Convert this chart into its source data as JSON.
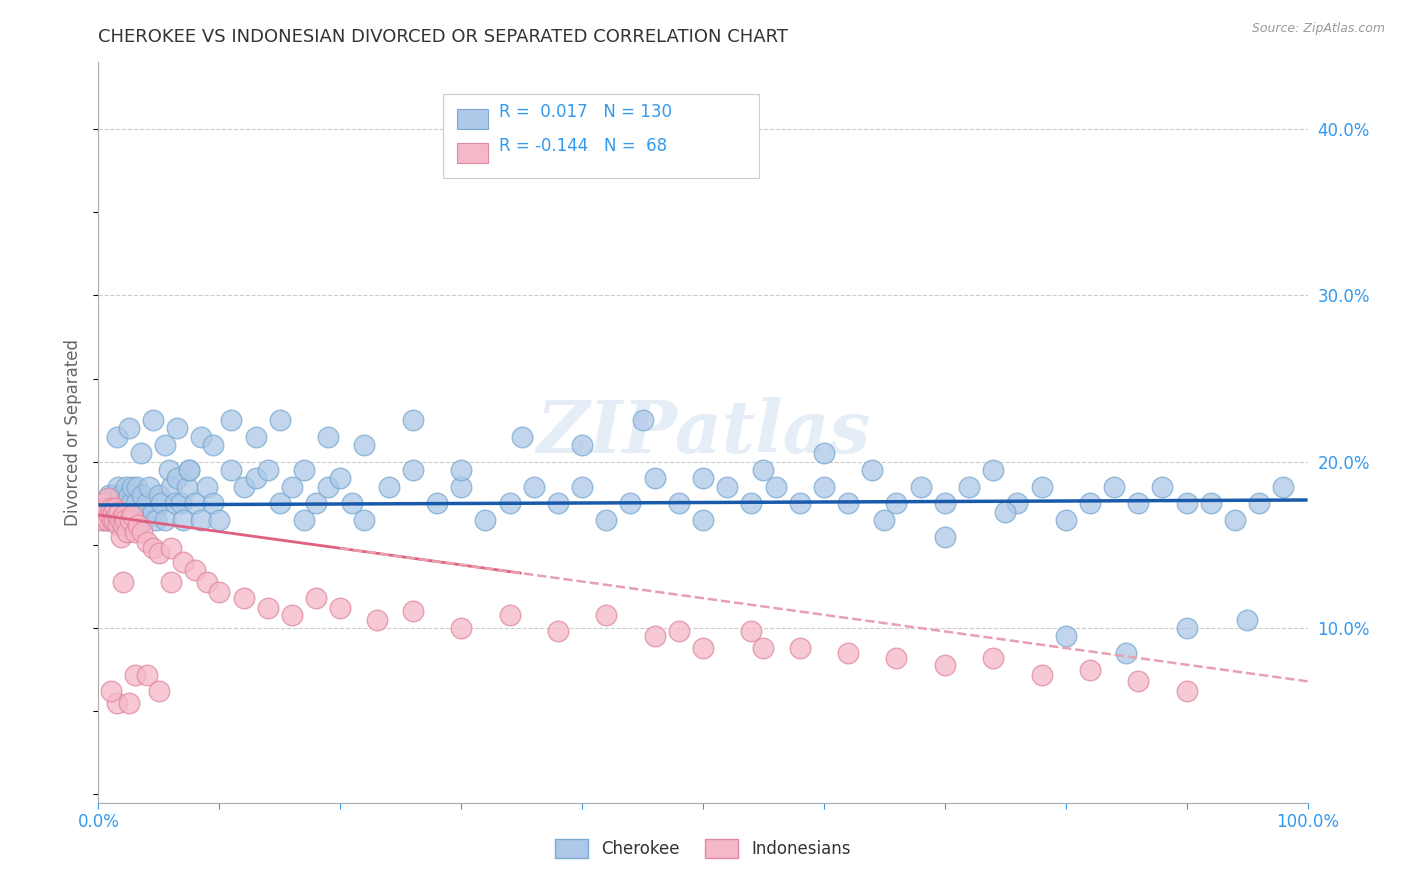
{
  "title": "CHEROKEE VS INDONESIAN DIVORCED OR SEPARATED CORRELATION CHART",
  "source": "Source: ZipAtlas.com",
  "ylabel": "Divorced or Separated",
  "ytick_values": [
    0.1,
    0.2,
    0.3,
    0.4
  ],
  "xlim": [
    0.0,
    1.0
  ],
  "ylim": [
    -0.005,
    0.44
  ],
  "cherokee_color": "#adc8e8",
  "cherokee_edge": "#7aaad0",
  "indonesian_color": "#f5b8c8",
  "indonesian_edge": "#e088a0",
  "cherokee_R": 0.017,
  "cherokee_N": 130,
  "indonesian_R": -0.144,
  "indonesian_N": 68,
  "cherokee_line_color": "#1a5aaa",
  "indonesian_line_color": "#e06080",
  "indonesian_dash_color": "#e8a0b0",
  "watermark": "ZIPatlas",
  "background_color": "#ffffff",
  "grid_color": "#cccccc",
  "title_color": "#333333",
  "axis_label_color": "#666666",
  "tick_color_blue": "#3399ee",
  "legend_text_color": "#3399ee",
  "cherokee_x": [
    0.003,
    0.005,
    0.007,
    0.008,
    0.009,
    0.01,
    0.011,
    0.012,
    0.013,
    0.014,
    0.015,
    0.016,
    0.017,
    0.018,
    0.019,
    0.02,
    0.021,
    0.022,
    0.023,
    0.024,
    0.025,
    0.026,
    0.027,
    0.028,
    0.03,
    0.031,
    0.032,
    0.034,
    0.036,
    0.038,
    0.04,
    0.042,
    0.045,
    0.048,
    0.05,
    0.052,
    0.055,
    0.058,
    0.06,
    0.063,
    0.065,
    0.068,
    0.07,
    0.073,
    0.075,
    0.08,
    0.085,
    0.09,
    0.095,
    0.1,
    0.11,
    0.12,
    0.13,
    0.14,
    0.15,
    0.16,
    0.17,
    0.18,
    0.19,
    0.2,
    0.21,
    0.22,
    0.24,
    0.26,
    0.28,
    0.3,
    0.32,
    0.34,
    0.36,
    0.38,
    0.4,
    0.42,
    0.44,
    0.46,
    0.48,
    0.5,
    0.52,
    0.54,
    0.56,
    0.58,
    0.6,
    0.62,
    0.64,
    0.66,
    0.68,
    0.7,
    0.72,
    0.74,
    0.76,
    0.78,
    0.8,
    0.82,
    0.84,
    0.86,
    0.88,
    0.9,
    0.92,
    0.94,
    0.96,
    0.98,
    0.015,
    0.025,
    0.035,
    0.045,
    0.055,
    0.065,
    0.075,
    0.085,
    0.095,
    0.11,
    0.13,
    0.15,
    0.17,
    0.19,
    0.22,
    0.26,
    0.3,
    0.35,
    0.4,
    0.45,
    0.5,
    0.55,
    0.6,
    0.65,
    0.7,
    0.75,
    0.8,
    0.85,
    0.9,
    0.95
  ],
  "cherokee_y": [
    0.17,
    0.165,
    0.175,
    0.165,
    0.18,
    0.175,
    0.165,
    0.17,
    0.18,
    0.165,
    0.175,
    0.185,
    0.17,
    0.165,
    0.18,
    0.175,
    0.165,
    0.175,
    0.185,
    0.17,
    0.18,
    0.165,
    0.175,
    0.185,
    0.165,
    0.175,
    0.185,
    0.17,
    0.18,
    0.165,
    0.175,
    0.185,
    0.17,
    0.165,
    0.18,
    0.175,
    0.165,
    0.195,
    0.185,
    0.175,
    0.19,
    0.175,
    0.165,
    0.185,
    0.195,
    0.175,
    0.165,
    0.185,
    0.175,
    0.165,
    0.195,
    0.185,
    0.19,
    0.195,
    0.175,
    0.185,
    0.165,
    0.175,
    0.185,
    0.19,
    0.175,
    0.165,
    0.185,
    0.195,
    0.175,
    0.185,
    0.165,
    0.175,
    0.185,
    0.175,
    0.185,
    0.165,
    0.175,
    0.19,
    0.175,
    0.165,
    0.185,
    0.175,
    0.185,
    0.175,
    0.185,
    0.175,
    0.195,
    0.175,
    0.185,
    0.175,
    0.185,
    0.195,
    0.175,
    0.185,
    0.165,
    0.175,
    0.185,
    0.175,
    0.185,
    0.175,
    0.175,
    0.165,
    0.175,
    0.185,
    0.215,
    0.22,
    0.205,
    0.225,
    0.21,
    0.22,
    0.195,
    0.215,
    0.21,
    0.225,
    0.215,
    0.225,
    0.195,
    0.215,
    0.21,
    0.225,
    0.195,
    0.215,
    0.21,
    0.225,
    0.19,
    0.195,
    0.205,
    0.165,
    0.155,
    0.17,
    0.095,
    0.085,
    0.1,
    0.105
  ],
  "indonesian_x": [
    0.002,
    0.003,
    0.004,
    0.005,
    0.006,
    0.007,
    0.008,
    0.009,
    0.01,
    0.011,
    0.012,
    0.013,
    0.014,
    0.015,
    0.016,
    0.017,
    0.018,
    0.019,
    0.02,
    0.021,
    0.022,
    0.024,
    0.026,
    0.028,
    0.03,
    0.033,
    0.036,
    0.04,
    0.045,
    0.05,
    0.06,
    0.07,
    0.08,
    0.09,
    0.1,
    0.12,
    0.14,
    0.16,
    0.18,
    0.2,
    0.23,
    0.26,
    0.3,
    0.34,
    0.38,
    0.42,
    0.46,
    0.5,
    0.54,
    0.58,
    0.62,
    0.66,
    0.7,
    0.74,
    0.78,
    0.82,
    0.86,
    0.9,
    0.48,
    0.55,
    0.02,
    0.015,
    0.025,
    0.01,
    0.03,
    0.04,
    0.05,
    0.06
  ],
  "indonesian_y": [
    0.17,
    0.165,
    0.175,
    0.168,
    0.172,
    0.165,
    0.178,
    0.168,
    0.172,
    0.165,
    0.17,
    0.165,
    0.172,
    0.168,
    0.162,
    0.17,
    0.165,
    0.155,
    0.162,
    0.168,
    0.165,
    0.158,
    0.165,
    0.168,
    0.158,
    0.162,
    0.158,
    0.152,
    0.148,
    0.145,
    0.148,
    0.14,
    0.135,
    0.128,
    0.122,
    0.118,
    0.112,
    0.108,
    0.118,
    0.112,
    0.105,
    0.11,
    0.1,
    0.108,
    0.098,
    0.108,
    0.095,
    0.088,
    0.098,
    0.088,
    0.085,
    0.082,
    0.078,
    0.082,
    0.072,
    0.075,
    0.068,
    0.062,
    0.098,
    0.088,
    0.128,
    0.055,
    0.055,
    0.062,
    0.072,
    0.072,
    0.062,
    0.128
  ]
}
